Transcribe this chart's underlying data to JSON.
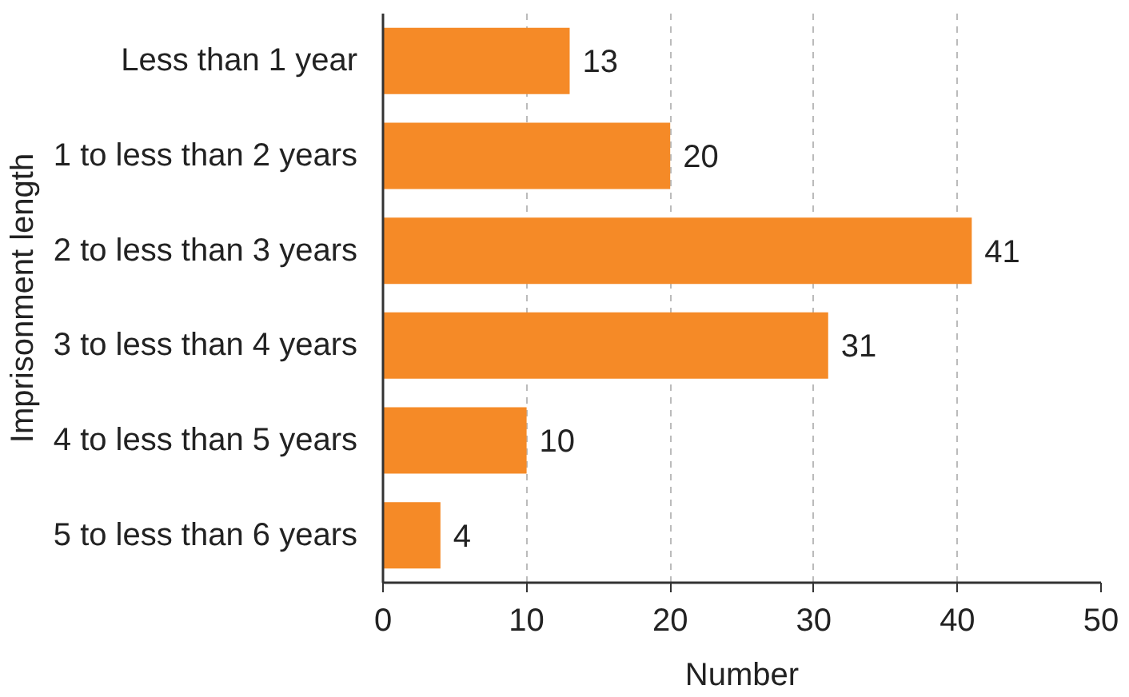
{
  "chart_data": {
    "type": "bar",
    "orientation": "horizontal",
    "xlabel": "Number",
    "ylabel": "Imprisonment length",
    "categories": [
      "Less than 1 year",
      "1 to less than 2 years",
      "2 to less than 3 years",
      "3 to less than 4 years",
      "4 to less than 5 years",
      "5 to less than 6 years"
    ],
    "values": [
      13,
      20,
      41,
      31,
      10,
      4
    ],
    "color": "#f58a27",
    "xlim": [
      0,
      50
    ],
    "xticks": [
      0,
      10,
      20,
      30,
      40,
      50
    ],
    "grid": "x",
    "data_labels": true
  }
}
